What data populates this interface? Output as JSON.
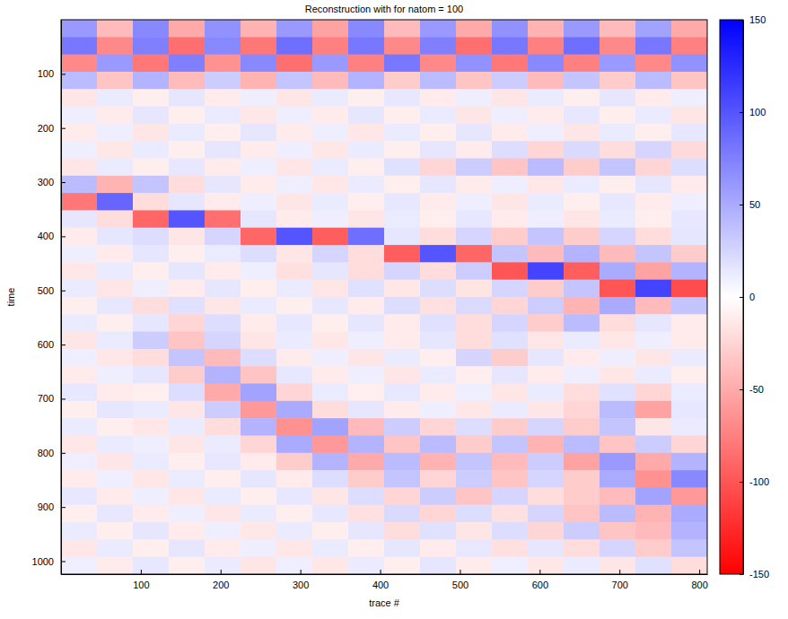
{
  "chart_data": {
    "type": "heatmap",
    "title": "Reconstruction with for natom = 100",
    "x_label": "trace #",
    "y_label": "time",
    "xlim": [
      0,
      810
    ],
    "ylim": [
      0,
      1024
    ],
    "xticks": [
      100,
      200,
      300,
      400,
      500,
      600,
      700,
      800
    ],
    "yticks": [
      100,
      200,
      300,
      400,
      500,
      600,
      700,
      800,
      900,
      1000
    ],
    "cells": {
      "x_bins": [
        0,
        45,
        90,
        135,
        180,
        225,
        270,
        315,
        360,
        405,
        450,
        495,
        540,
        585,
        630,
        675,
        720,
        765,
        810
      ],
      "y_bins": [
        0,
        32,
        64,
        96,
        128,
        160,
        192,
        224,
        256,
        288,
        320,
        352,
        384,
        416,
        448,
        480,
        512,
        544,
        576,
        608,
        640,
        672,
        704,
        736,
        768,
        800,
        832,
        864,
        896,
        928,
        960,
        992,
        1024
      ],
      "values": [
        [
          60,
          -40,
          70,
          -50,
          65,
          -45,
          60,
          -55,
          70,
          -40,
          60,
          -50,
          65,
          -45,
          60,
          -40,
          55,
          -50
        ],
        [
          80,
          -70,
          75,
          -85,
          70,
          -80,
          85,
          -75,
          80,
          -70,
          75,
          -85,
          80,
          -75,
          85,
          -70,
          80,
          -75
        ],
        [
          -70,
          60,
          -80,
          75,
          -65,
          70,
          -85,
          60,
          -75,
          80,
          -70,
          65,
          -80,
          70,
          -75,
          60,
          -70,
          65
        ],
        [
          40,
          -35,
          45,
          -40,
          30,
          -45,
          35,
          -40,
          45,
          -30,
          40,
          -35,
          30,
          -40,
          35,
          -30,
          40,
          -35
        ],
        [
          -15,
          12,
          -10,
          15,
          -12,
          10,
          -15,
          12,
          -10,
          14,
          -12,
          10,
          -15,
          12,
          -10,
          15,
          -12,
          10
        ],
        [
          10,
          -12,
          15,
          -10,
          12,
          -14,
          10,
          -12,
          15,
          -10,
          12,
          -15,
          10,
          -12,
          14,
          -10,
          12,
          -15
        ],
        [
          -12,
          10,
          -15,
          12,
          -10,
          15,
          -12,
          10,
          -14,
          12,
          -10,
          15,
          -12,
          10,
          -15,
          12,
          -10,
          14
        ],
        [
          10,
          -14,
          12,
          -10,
          15,
          -12,
          10,
          -14,
          12,
          -10,
          15,
          -12,
          20,
          -25,
          22,
          -20,
          25,
          -22
        ],
        [
          -15,
          12,
          -10,
          14,
          -12,
          10,
          -15,
          12,
          -10,
          18,
          -25,
          30,
          -35,
          40,
          -30,
          35,
          -25,
          20
        ],
        [
          40,
          -45,
          35,
          -20,
          15,
          -12,
          10,
          -14,
          12,
          -10,
          15,
          -12,
          10,
          -14,
          12,
          -10,
          15,
          -12
        ],
        [
          -80,
          90,
          -20,
          15,
          -12,
          10,
          -15,
          12,
          -10,
          14,
          -12,
          10,
          -15,
          12,
          -10,
          14,
          -12,
          10
        ],
        [
          15,
          -20,
          -90,
          100,
          -85,
          15,
          -12,
          10,
          -15,
          12,
          -10,
          14,
          -12,
          10,
          -15,
          12,
          -10,
          14
        ],
        [
          -12,
          15,
          20,
          -15,
          25,
          -90,
          100,
          -95,
          85,
          15,
          -20,
          25,
          -30,
          35,
          -30,
          25,
          -20,
          15
        ],
        [
          10,
          -12,
          15,
          -10,
          12,
          20,
          -15,
          25,
          -20,
          -95,
          100,
          -90,
          35,
          -40,
          45,
          -40,
          35,
          -30
        ],
        [
          -14,
          12,
          -10,
          15,
          -12,
          10,
          -18,
          15,
          -20,
          25,
          -20,
          30,
          -100,
          110,
          -95,
          50,
          -55,
          45
        ],
        [
          12,
          -15,
          10,
          -12,
          15,
          -10,
          12,
          -15,
          18,
          -14,
          20,
          -16,
          25,
          -30,
          35,
          -100,
          110,
          -105
        ],
        [
          -10,
          14,
          -20,
          18,
          -15,
          12,
          -10,
          14,
          -12,
          20,
          -18,
          22,
          -25,
          30,
          -45,
          50,
          -40,
          35
        ],
        [
          12,
          -10,
          15,
          -25,
          20,
          -12,
          14,
          -10,
          15,
          -12,
          18,
          -20,
          25,
          -30,
          40,
          -20,
          15,
          -12
        ],
        [
          -15,
          12,
          30,
          -35,
          25,
          -15,
          12,
          -14,
          10,
          -12,
          15,
          -20,
          18,
          -15,
          12,
          -14,
          10,
          -12
        ],
        [
          10,
          -14,
          -20,
          35,
          -40,
          20,
          -12,
          10,
          -15,
          12,
          -10,
          25,
          -30,
          15,
          -12,
          10,
          -15,
          12
        ],
        [
          -12,
          10,
          15,
          -30,
          45,
          -35,
          14,
          -12,
          10,
          -15,
          12,
          -10,
          15,
          -12,
          10,
          -14,
          12,
          -10
        ],
        [
          14,
          -12,
          -10,
          20,
          -50,
          55,
          -25,
          12,
          -10,
          14,
          -12,
          10,
          -15,
          12,
          -20,
          18,
          -25,
          12
        ],
        [
          -10,
          15,
          12,
          -15,
          30,
          -60,
          50,
          -20,
          15,
          -12,
          10,
          -14,
          12,
          -15,
          -25,
          40,
          -55,
          14
        ],
        [
          12,
          -10,
          -14,
          12,
          -20,
          45,
          -65,
          55,
          -40,
          30,
          -25,
          20,
          -30,
          25,
          -30,
          35,
          -15,
          12
        ],
        [
          -14,
          12,
          10,
          -15,
          12,
          -25,
          50,
          -60,
          45,
          -35,
          40,
          -30,
          35,
          -45,
          40,
          -35,
          30,
          -25
        ],
        [
          10,
          -15,
          12,
          -10,
          14,
          -12,
          -30,
          45,
          -50,
          40,
          -45,
          35,
          -40,
          30,
          -55,
          60,
          -50,
          45
        ],
        [
          -12,
          10,
          -14,
          12,
          -10,
          15,
          -12,
          20,
          -30,
          35,
          -25,
          30,
          -35,
          25,
          -30,
          50,
          -65,
          70
        ],
        [
          14,
          -12,
          10,
          -15,
          12,
          -10,
          14,
          -15,
          20,
          -25,
          30,
          -35,
          25,
          -20,
          -30,
          -40,
          55,
          -60
        ],
        [
          -10,
          14,
          -12,
          10,
          -15,
          12,
          -10,
          14,
          -18,
          22,
          -25,
          20,
          -18,
          25,
          -35,
          40,
          -45,
          50
        ],
        [
          12,
          -10,
          15,
          -12,
          10,
          -14,
          12,
          -10,
          15,
          -20,
          18,
          -15,
          20,
          -25,
          30,
          -35,
          -40,
          45
        ],
        [
          -14,
          12,
          -10,
          15,
          -12,
          10,
          -14,
          12,
          -10,
          15,
          -12,
          14,
          -18,
          15,
          -20,
          25,
          -30,
          35
        ],
        [
          10,
          -12,
          14,
          -10,
          12,
          -15,
          10,
          -14,
          12,
          -10,
          15,
          -12,
          10,
          -14,
          12,
          -15,
          18,
          -20
        ]
      ]
    },
    "colorbar": {
      "range": [
        -150,
        150
      ],
      "ticks": [
        -150,
        -100,
        -50,
        0,
        50,
        100,
        150
      ]
    }
  }
}
